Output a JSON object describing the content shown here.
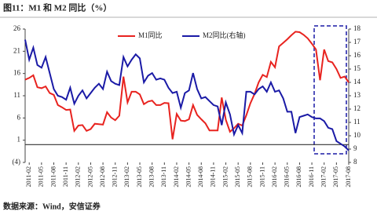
{
  "chart_data": {
    "type": "line",
    "title": "图11：M1 和 M2 同比（%）",
    "source": "数据来源：Wind，安信证券",
    "x": [
      null,
      "2011-02",
      null,
      null,
      "2011-05",
      null,
      null,
      "2011-08",
      null,
      null,
      "2011-11",
      null,
      null,
      "2012-02",
      null,
      null,
      "2012-05",
      null,
      null,
      "2012-08",
      null,
      null,
      "2012-11",
      null,
      null,
      "2013-02",
      null,
      null,
      "2013-05",
      null,
      null,
      "2013-08",
      null,
      null,
      "2013-11",
      null,
      null,
      "2014-02",
      null,
      null,
      "2014-05",
      null,
      null,
      "2014-08",
      null,
      null,
      "2014-11",
      null,
      null,
      "2015-02",
      null,
      null,
      "2015-05",
      null,
      null,
      "2015-08",
      null,
      null,
      "2015-11",
      null,
      null,
      "2016-02",
      null,
      null,
      "2016-05",
      null,
      null,
      "2016-08",
      null,
      null,
      "2016-11",
      null,
      null,
      "2017-02",
      null,
      null,
      "2017-05",
      null,
      null,
      "2017-08"
    ],
    "series": [
      {
        "name": "M1同比",
        "color": "#e8231f",
        "values": [
          14.6,
          15.0,
          15.6,
          12.9,
          12.7,
          13.1,
          11.6,
          11.2,
          8.9,
          8.4,
          7.8,
          7.9,
          3.1,
          4.3,
          4.4,
          3.1,
          3.5,
          4.7,
          4.6,
          4.5,
          7.3,
          6.1,
          5.5,
          6.5,
          15.3,
          9.5,
          11.9,
          11.9,
          11.3,
          9.1,
          9.7,
          9.9,
          8.9,
          8.9,
          9.4,
          9.3,
          1.2,
          6.9,
          5.4,
          5.3,
          5.7,
          8.9,
          6.7,
          5.7,
          4.8,
          3.2,
          3.2,
          3.2,
          10.6,
          5.6,
          2.9,
          3.7,
          4.7,
          4.3,
          6.6,
          9.3,
          11.4,
          14.0,
          15.7,
          15.2,
          18.6,
          17.4,
          22.1,
          22.9,
          23.7,
          24.6,
          25.4,
          25.3,
          24.7,
          23.9,
          22.7,
          21.4,
          14.5,
          21.4,
          18.8,
          18.5,
          17.0,
          15.0,
          15.3,
          14.0
        ]
      },
      {
        "name": "M2同比(右轴)",
        "color": "#1a1aa6",
        "axis": "y2",
        "values": [
          17.2,
          15.7,
          16.6,
          15.3,
          15.1,
          15.9,
          14.7,
          13.5,
          13.0,
          12.9,
          12.7,
          13.6,
          12.4,
          13.0,
          13.4,
          12.8,
          13.2,
          13.6,
          13.9,
          13.5,
          14.8,
          14.1,
          13.9,
          13.8,
          15.9,
          15.2,
          15.7,
          16.1,
          15.8,
          14.0,
          14.5,
          14.7,
          14.2,
          14.3,
          14.2,
          13.6,
          13.2,
          13.3,
          12.1,
          13.2,
          13.4,
          14.7,
          13.5,
          12.8,
          12.9,
          12.6,
          12.3,
          12.2,
          10.8,
          12.5,
          11.6,
          10.1,
          10.8,
          10.2,
          13.3,
          13.3,
          13.1,
          13.5,
          13.7,
          13.3,
          14.0,
          13.3,
          13.4,
          12.8,
          11.8,
          11.8,
          10.2,
          11.4,
          11.5,
          11.6,
          11.4,
          11.3,
          11.3,
          11.1,
          10.6,
          10.5,
          9.6,
          9.4,
          9.2,
          8.9
        ]
      }
    ],
    "ylim": [
      -4,
      26
    ],
    "yticks": [
      {
        "value": -4,
        "label": "(4)"
      },
      1,
      6,
      11,
      16,
      21,
      26
    ],
    "y2lim": [
      8,
      18
    ],
    "y2ticks": [
      8,
      9,
      10,
      11,
      12,
      13,
      14,
      15,
      16,
      17,
      18
    ]
  }
}
